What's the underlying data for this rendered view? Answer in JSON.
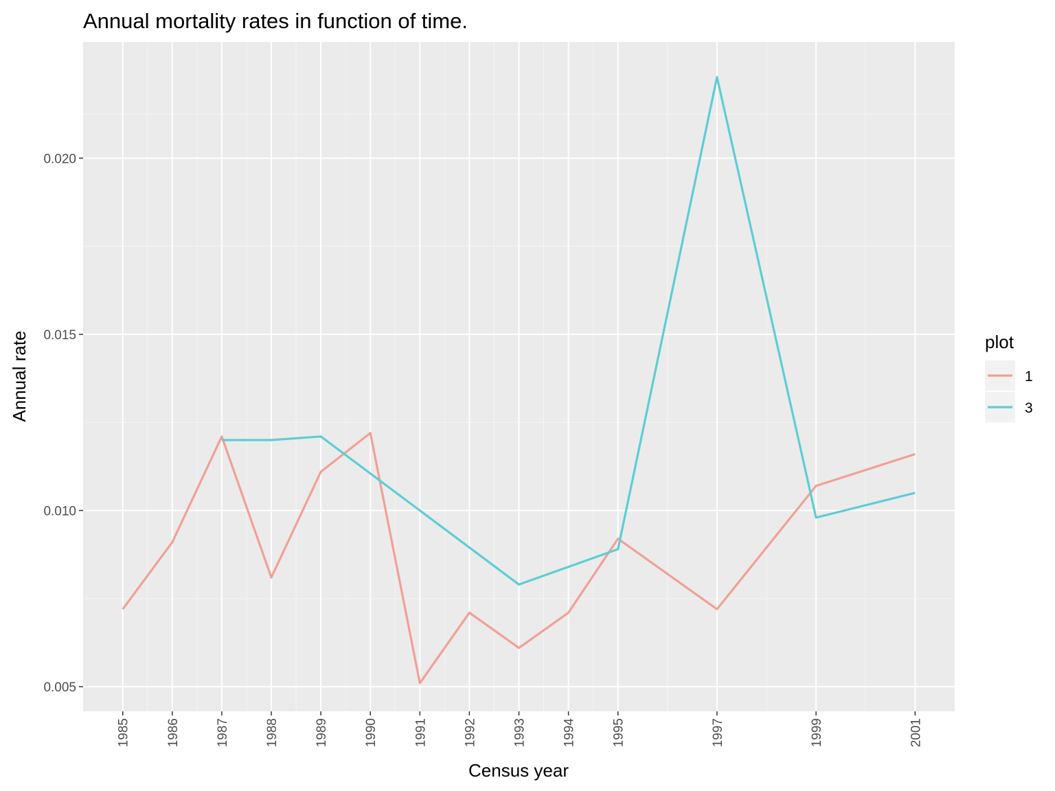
{
  "chart_data": {
    "type": "line",
    "title": "Annual mortality rates in function of time.",
    "xlabel": "Census year",
    "ylabel": "Annual rate",
    "x_ticks": [
      "1985",
      "1986",
      "1987",
      "1988",
      "1989",
      "1990",
      "1991",
      "1992",
      "1993",
      "1994",
      "1995",
      "1997",
      "1999",
      "2001"
    ],
    "y_ticks": [
      "0.005",
      "0.010",
      "0.015",
      "0.020"
    ],
    "xlim": [
      1984.2,
      2001.8
    ],
    "ylim": [
      0.0043,
      0.0233
    ],
    "grid": true,
    "legend": {
      "title": "plot",
      "position": "right"
    },
    "series": [
      {
        "name": "1",
        "color": "#f0a097",
        "x": [
          1985,
          1986,
          1987,
          1988,
          1989,
          1990,
          1991,
          1992,
          1993,
          1994,
          1995,
          1997,
          1999,
          2001
        ],
        "y": [
          0.0072,
          0.0091,
          0.0121,
          0.0081,
          0.0111,
          0.0122,
          0.0051,
          0.0071,
          0.0061,
          0.0071,
          0.0092,
          0.0072,
          0.0107,
          0.0116
        ]
      },
      {
        "name": "3",
        "color": "#5dcdd4",
        "x": [
          1987,
          1988,
          1989,
          1991,
          1993,
          1995,
          1997,
          1999,
          2001
        ],
        "y": [
          0.012,
          0.012,
          0.0121,
          0.01,
          0.0079,
          0.0089,
          0.0223,
          0.0098,
          0.0105
        ]
      }
    ]
  }
}
